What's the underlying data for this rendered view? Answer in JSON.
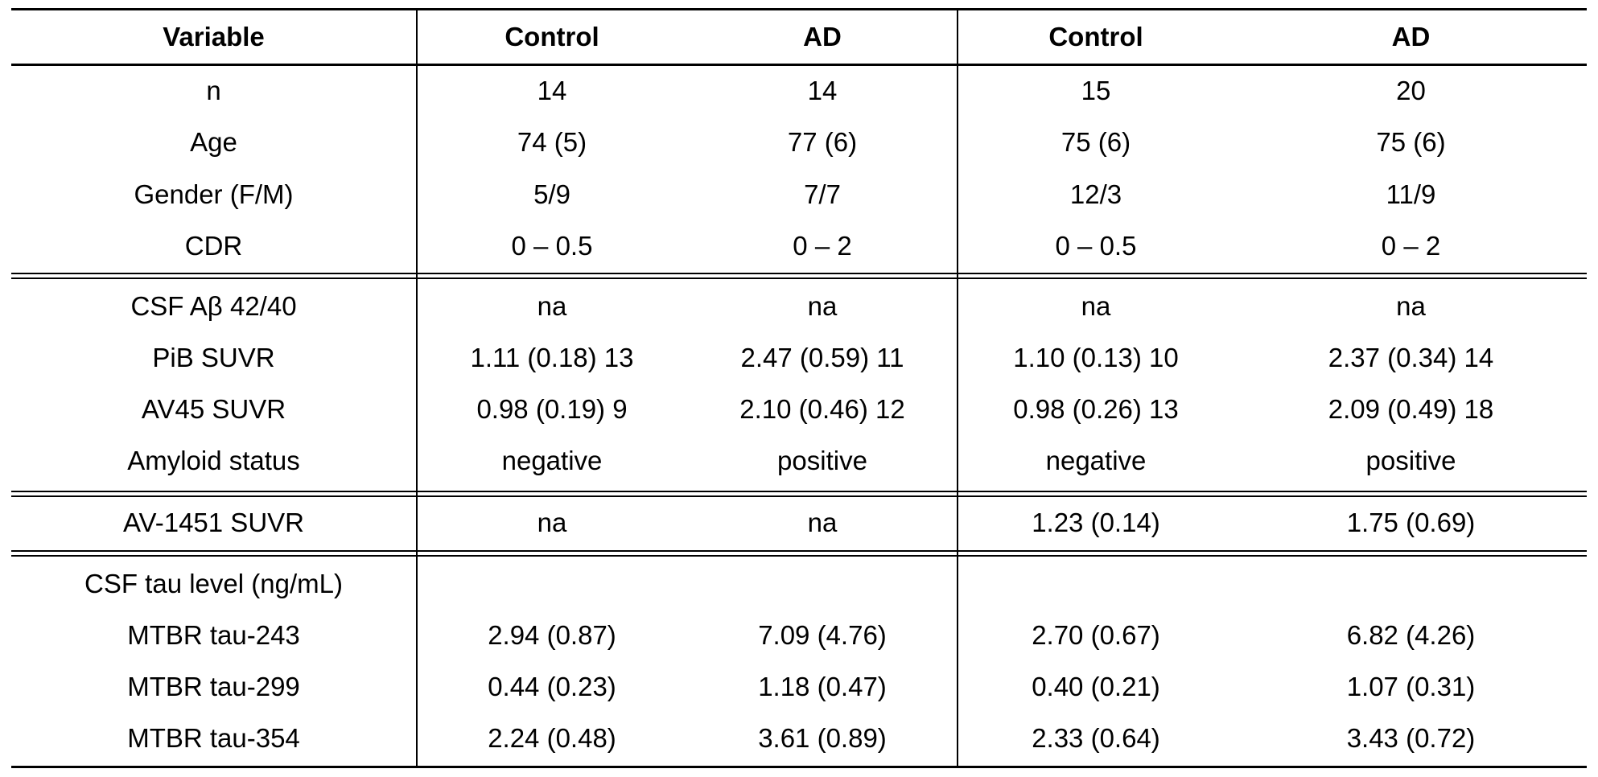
{
  "table": {
    "headers": [
      "Variable",
      "Control",
      "AD",
      "Control",
      "AD"
    ],
    "rows": [
      [
        "n",
        "14",
        "14",
        "15",
        "20"
      ],
      [
        "Age",
        "74 (5)",
        "77 (6)",
        "75 (6)",
        "75 (6)"
      ],
      [
        "Gender (F/M)",
        "5/9",
        "7/7",
        "12/3",
        "11/9"
      ],
      [
        "CDR",
        "0 – 0.5",
        "0 – 2",
        "0 – 0.5",
        "0 – 2"
      ],
      [
        "CSF Aβ 42/40",
        "na",
        "na",
        "na",
        "na"
      ],
      [
        "PiB SUVR",
        "1.11 (0.18) 13",
        "2.47 (0.59) 11",
        "1.10 (0.13) 10",
        "2.37 (0.34) 14"
      ],
      [
        "AV45 SUVR",
        "0.98 (0.19) 9",
        "2.10 (0.46) 12",
        "0.98 (0.26) 13",
        "2.09 (0.49) 18"
      ],
      [
        "Amyloid status",
        "negative",
        "positive",
        "negative",
        "positive"
      ],
      [
        "AV-1451 SUVR",
        "na",
        "na",
        "1.23 (0.14)",
        "1.75 (0.69)"
      ],
      [
        "CSF tau level (ng/mL)",
        "",
        "",
        "",
        ""
      ],
      [
        "MTBR tau-243",
        "2.94 (0.87)",
        "7.09 (4.76)",
        "2.70 (0.67)",
        "6.82 (4.26)"
      ],
      [
        "MTBR tau-299",
        "0.44 (0.23)",
        "1.18 (0.47)",
        "0.40 (0.21)",
        "1.07 (0.31)"
      ],
      [
        "MTBR tau-354",
        "2.24 (0.48)",
        "3.61 (0.89)",
        "2.33 (0.64)",
        "3.43 (0.72)"
      ]
    ]
  }
}
